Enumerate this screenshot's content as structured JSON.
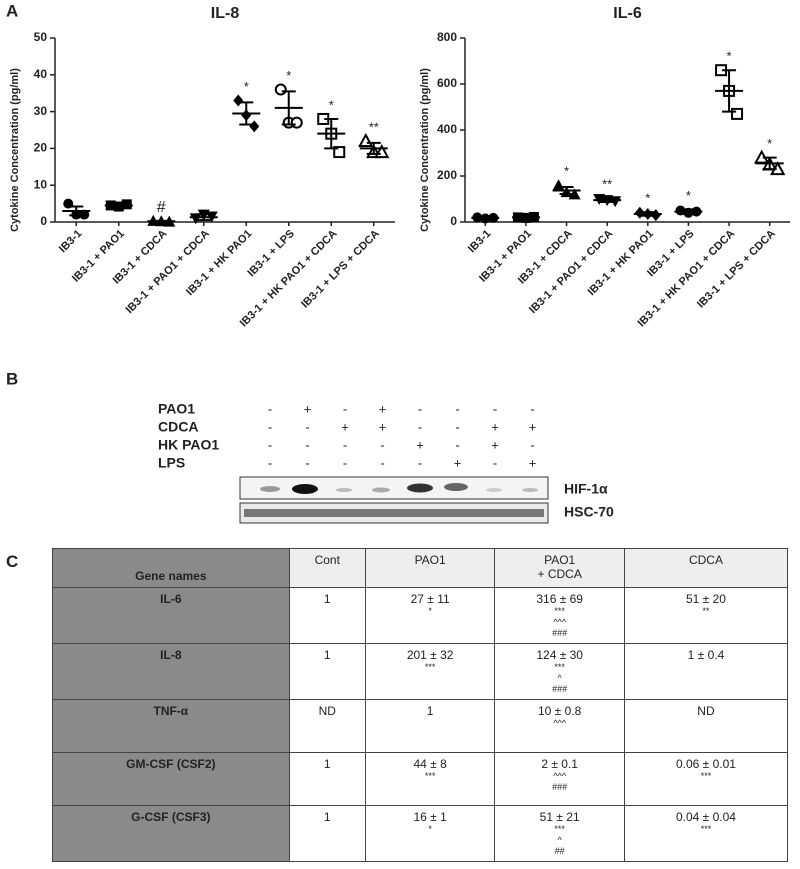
{
  "panels": [
    "A",
    "B",
    "C"
  ],
  "chart_data": [
    {
      "type": "dot",
      "title": "IL-8",
      "ylabel": "Cytokine Concentration (pg/ml)",
      "color": "#000000",
      "categories": [
        "IB3-1",
        "IB3-1 + PAO1",
        "IB3-1 + CDCA",
        "IB3-1 + PAO1 + CDCA",
        "IB3-1 + HK PAO1",
        "IB3-1 + LPS",
        "IB3-1 + HK PAO1 + CDCA",
        "IB3-1 + LPS + CDCA"
      ],
      "markers": [
        "circle",
        "square",
        "triangle",
        "triangle-down",
        "diamond",
        "circle-open",
        "square-open",
        "triangle-open"
      ],
      "points": [
        [
          5,
          2,
          2
        ],
        [
          4.5,
          4.2,
          4.8
        ],
        [
          0.3,
          0.2,
          0.1
        ],
        [
          1,
          2,
          1.5
        ],
        [
          33,
          29,
          26
        ],
        [
          36,
          27,
          27
        ],
        [
          28,
          24,
          19
        ],
        [
          22,
          19,
          19
        ]
      ],
      "means": [
        3,
        4.5,
        0.2,
        1.3,
        29.5,
        31,
        24,
        20
      ],
      "errors": [
        1.2,
        0.5,
        0.1,
        0.8,
        3,
        4.5,
        4,
        1.5
      ],
      "annotations": [
        null,
        null,
        "#",
        null,
        "*",
        "*",
        "*",
        "**"
      ],
      "ylim": [
        0,
        50
      ],
      "yticks": [
        0,
        10,
        20,
        30,
        40,
        50
      ]
    },
    {
      "type": "dot",
      "title": "IL-6",
      "ylabel": "Cytokine Concentration (pg/ml)",
      "color": "#000000",
      "categories": [
        "IB3-1",
        "IB3-1 + PAO1",
        "IB3-1 + CDCA",
        "IB3-1 + PAO1 + CDCA",
        "IB3-1 + HK PAO1",
        "IB3-1 + LPS",
        "IB3-1 + HK PAO1 + CDCA",
        "IB3-1 + LPS + CDCA"
      ],
      "markers": [
        "circle",
        "square",
        "triangle",
        "triangle-down",
        "diamond",
        "circle",
        "square-open",
        "triangle-open"
      ],
      "points": [
        [
          20,
          15,
          18
        ],
        [
          20,
          18,
          22
        ],
        [
          160,
          130,
          120
        ],
        [
          100,
          95,
          90
        ],
        [
          40,
          35,
          30
        ],
        [
          50,
          40,
          45
        ],
        [
          660,
          570,
          470
        ],
        [
          280,
          250,
          230
        ]
      ],
      "means": [
        18,
        20,
        137,
        95,
        35,
        45,
        570,
        255
      ],
      "errors": [
        3,
        3,
        15,
        8,
        8,
        10,
        90,
        25
      ],
      "annotations": [
        null,
        null,
        "*",
        "**",
        "*",
        "*",
        "*",
        "*"
      ],
      "ylim": [
        0,
        800
      ],
      "yticks": [
        0,
        200,
        400,
        600,
        800
      ]
    }
  ],
  "blot": {
    "rows": [
      {
        "label": "PAO1",
        "signs": [
          "-",
          "+",
          "-",
          "+",
          "-",
          "-",
          "-",
          "-"
        ]
      },
      {
        "label": "CDCA",
        "signs": [
          "-",
          "-",
          "+",
          "+",
          "-",
          "-",
          "+",
          "+"
        ]
      },
      {
        "label": "HK PAO1",
        "signs": [
          "-",
          "-",
          "-",
          "-",
          "+",
          "-",
          "+",
          "-"
        ]
      },
      {
        "label": "LPS",
        "signs": [
          "-",
          "-",
          "-",
          "-",
          "-",
          "+",
          "-",
          "+"
        ]
      }
    ],
    "bands": [
      "HIF-1α",
      "HSC-70"
    ]
  },
  "table": {
    "header": [
      "Gene names",
      "Cont",
      "PAO1",
      "PAO1\n+ CDCA",
      "CDCA"
    ],
    "rows": [
      {
        "name": "IL-6",
        "cells": [
          [
            "1"
          ],
          [
            "27 ± 11",
            "*"
          ],
          [
            "316 ± 69",
            "***",
            "^^^",
            "###"
          ],
          [
            "51 ± 20",
            "**"
          ]
        ]
      },
      {
        "name": "IL-8",
        "cells": [
          [
            "1"
          ],
          [
            "201 ± 32",
            "***"
          ],
          [
            "124 ± 30",
            "***",
            "^",
            "###"
          ],
          [
            "1 ± 0.4"
          ]
        ]
      },
      {
        "name": "TNF-α",
        "cells": [
          [
            "ND"
          ],
          [
            "1"
          ],
          [
            "10 ± 0.8",
            "^^^"
          ],
          [
            "ND"
          ]
        ]
      },
      {
        "name": "GM-CSF (CSF2)",
        "cells": [
          [
            "1"
          ],
          [
            "44 ± 8",
            "***"
          ],
          [
            "2 ± 0.1",
            "^^^",
            "###"
          ],
          [
            "0.06  ± 0.01",
            "***"
          ]
        ]
      },
      {
        "name": "G-CSF (CSF3)",
        "cells": [
          [
            "1"
          ],
          [
            "16 ± 1",
            "*"
          ],
          [
            "51 ± 21",
            "***",
            "^",
            "##"
          ],
          [
            "0.04 ± 0.04",
            "***"
          ]
        ]
      }
    ]
  }
}
